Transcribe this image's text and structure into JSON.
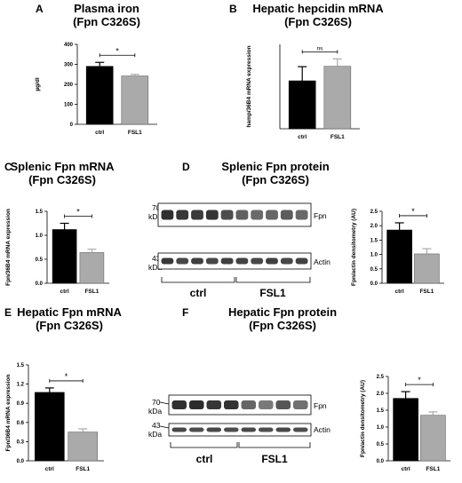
{
  "panels": {
    "A": {
      "letter": "A",
      "title1": "Plasma iron",
      "title2": "(Fpn C326S)"
    },
    "B": {
      "letter": "B",
      "title1": "Hepatic hepcidin mRNA",
      "title2": "(Fpn C326S)"
    },
    "C": {
      "letter": "C",
      "title1": "Splenic Fpn mRNA",
      "title2": "(Fpn C326S)"
    },
    "D": {
      "letter": "D",
      "title1": "Splenic Fpn protein",
      "title2": "(Fpn C326S)"
    },
    "E": {
      "letter": "E",
      "title1": "Hepatic Fpn mRNA",
      "title2": "(Fpn C326S)"
    },
    "F": {
      "letter": "F",
      "title1": "Hepatic Fpn protein",
      "title2": "(Fpn C326S)"
    }
  },
  "blots": {
    "D": {
      "marker_top": "70",
      "marker_top_unit": "kDa",
      "marker_bottom": "43",
      "marker_bottom_unit": "kDa",
      "band_top": "Fpn",
      "band_bottom": "Actin",
      "group1": "ctrl",
      "group2": "FSL1"
    },
    "F": {
      "marker_top": "70",
      "marker_top_unit": "kDa",
      "marker_bottom": "43",
      "marker_bottom_unit": "kDa",
      "band_top": "Fpn",
      "band_bottom": "Actin",
      "group1": "ctrl",
      "group2": "FSL1"
    }
  },
  "colors": {
    "ctrl": "#000000",
    "FSL1": "#aaaaaa"
  },
  "chart_data": [
    {
      "id": "A",
      "type": "bar",
      "categories": [
        "ctrl",
        "FSL1"
      ],
      "values": [
        290,
        242
      ],
      "errors": [
        20,
        8
      ],
      "title": "",
      "xlabel": "",
      "ylabel": "µg/dl",
      "ylim": [
        0,
        400
      ],
      "yticks": [
        "0",
        "100",
        "200",
        "300",
        "400"
      ],
      "significance": "*"
    },
    {
      "id": "B",
      "type": "bar",
      "categories": [
        "ctrl",
        "FSL1"
      ],
      "values": [
        1.42,
        1.85
      ],
      "errors": [
        0.42,
        0.22
      ],
      "title": "",
      "xlabel": "",
      "ylabel": "hamp/36B4 mRNA expression",
      "ylim": [
        0,
        2.5
      ],
      "yticks": [],
      "significance": "ns"
    },
    {
      "id": "C",
      "type": "bar",
      "categories": [
        "ctrl",
        "FSL1"
      ],
      "values": [
        1.12,
        0.64
      ],
      "errors": [
        0.13,
        0.07
      ],
      "title": "",
      "xlabel": "",
      "ylabel": "Fpn/36B4 mRNA expression",
      "ylim": [
        0,
        1.5
      ],
      "yticks": [
        "0.0",
        "0.5",
        "1.0",
        "1.5"
      ],
      "significance": "*"
    },
    {
      "id": "D",
      "type": "bar",
      "categories": [
        "ctrl",
        "FSL1"
      ],
      "values": [
        1.85,
        1.02
      ],
      "errors": [
        0.25,
        0.18
      ],
      "title": "",
      "xlabel": "",
      "ylabel": "Fpn/actin densitometry (AU)",
      "ylim": [
        0,
        2.5
      ],
      "yticks": [
        "0.0",
        "0.5",
        "1.0",
        "1.5",
        "2.0",
        "2.5"
      ],
      "significance": "*"
    },
    {
      "id": "E",
      "type": "bar",
      "categories": [
        "ctrl",
        "FSL1"
      ],
      "values": [
        1.07,
        0.45
      ],
      "errors": [
        0.07,
        0.05
      ],
      "title": "",
      "xlabel": "",
      "ylabel": "Fpn/36B4 mRNA expression",
      "ylim": [
        0,
        1.5
      ],
      "yticks": [
        "0.0",
        "0.3",
        "0.6",
        "0.9",
        "1.2",
        "1.5"
      ],
      "significance": "*"
    },
    {
      "id": "F",
      "type": "bar",
      "categories": [
        "ctrl",
        "FSL1"
      ],
      "values": [
        1.85,
        1.35
      ],
      "errors": [
        0.2,
        0.1
      ],
      "title": "",
      "xlabel": "",
      "ylabel": "Fpn/actin densitometry (AU)",
      "ylim": [
        0,
        2.5
      ],
      "yticks": [
        "0.0",
        "0.5",
        "1.0",
        "1.5",
        "2.0",
        "2.5"
      ],
      "significance": "*"
    }
  ]
}
